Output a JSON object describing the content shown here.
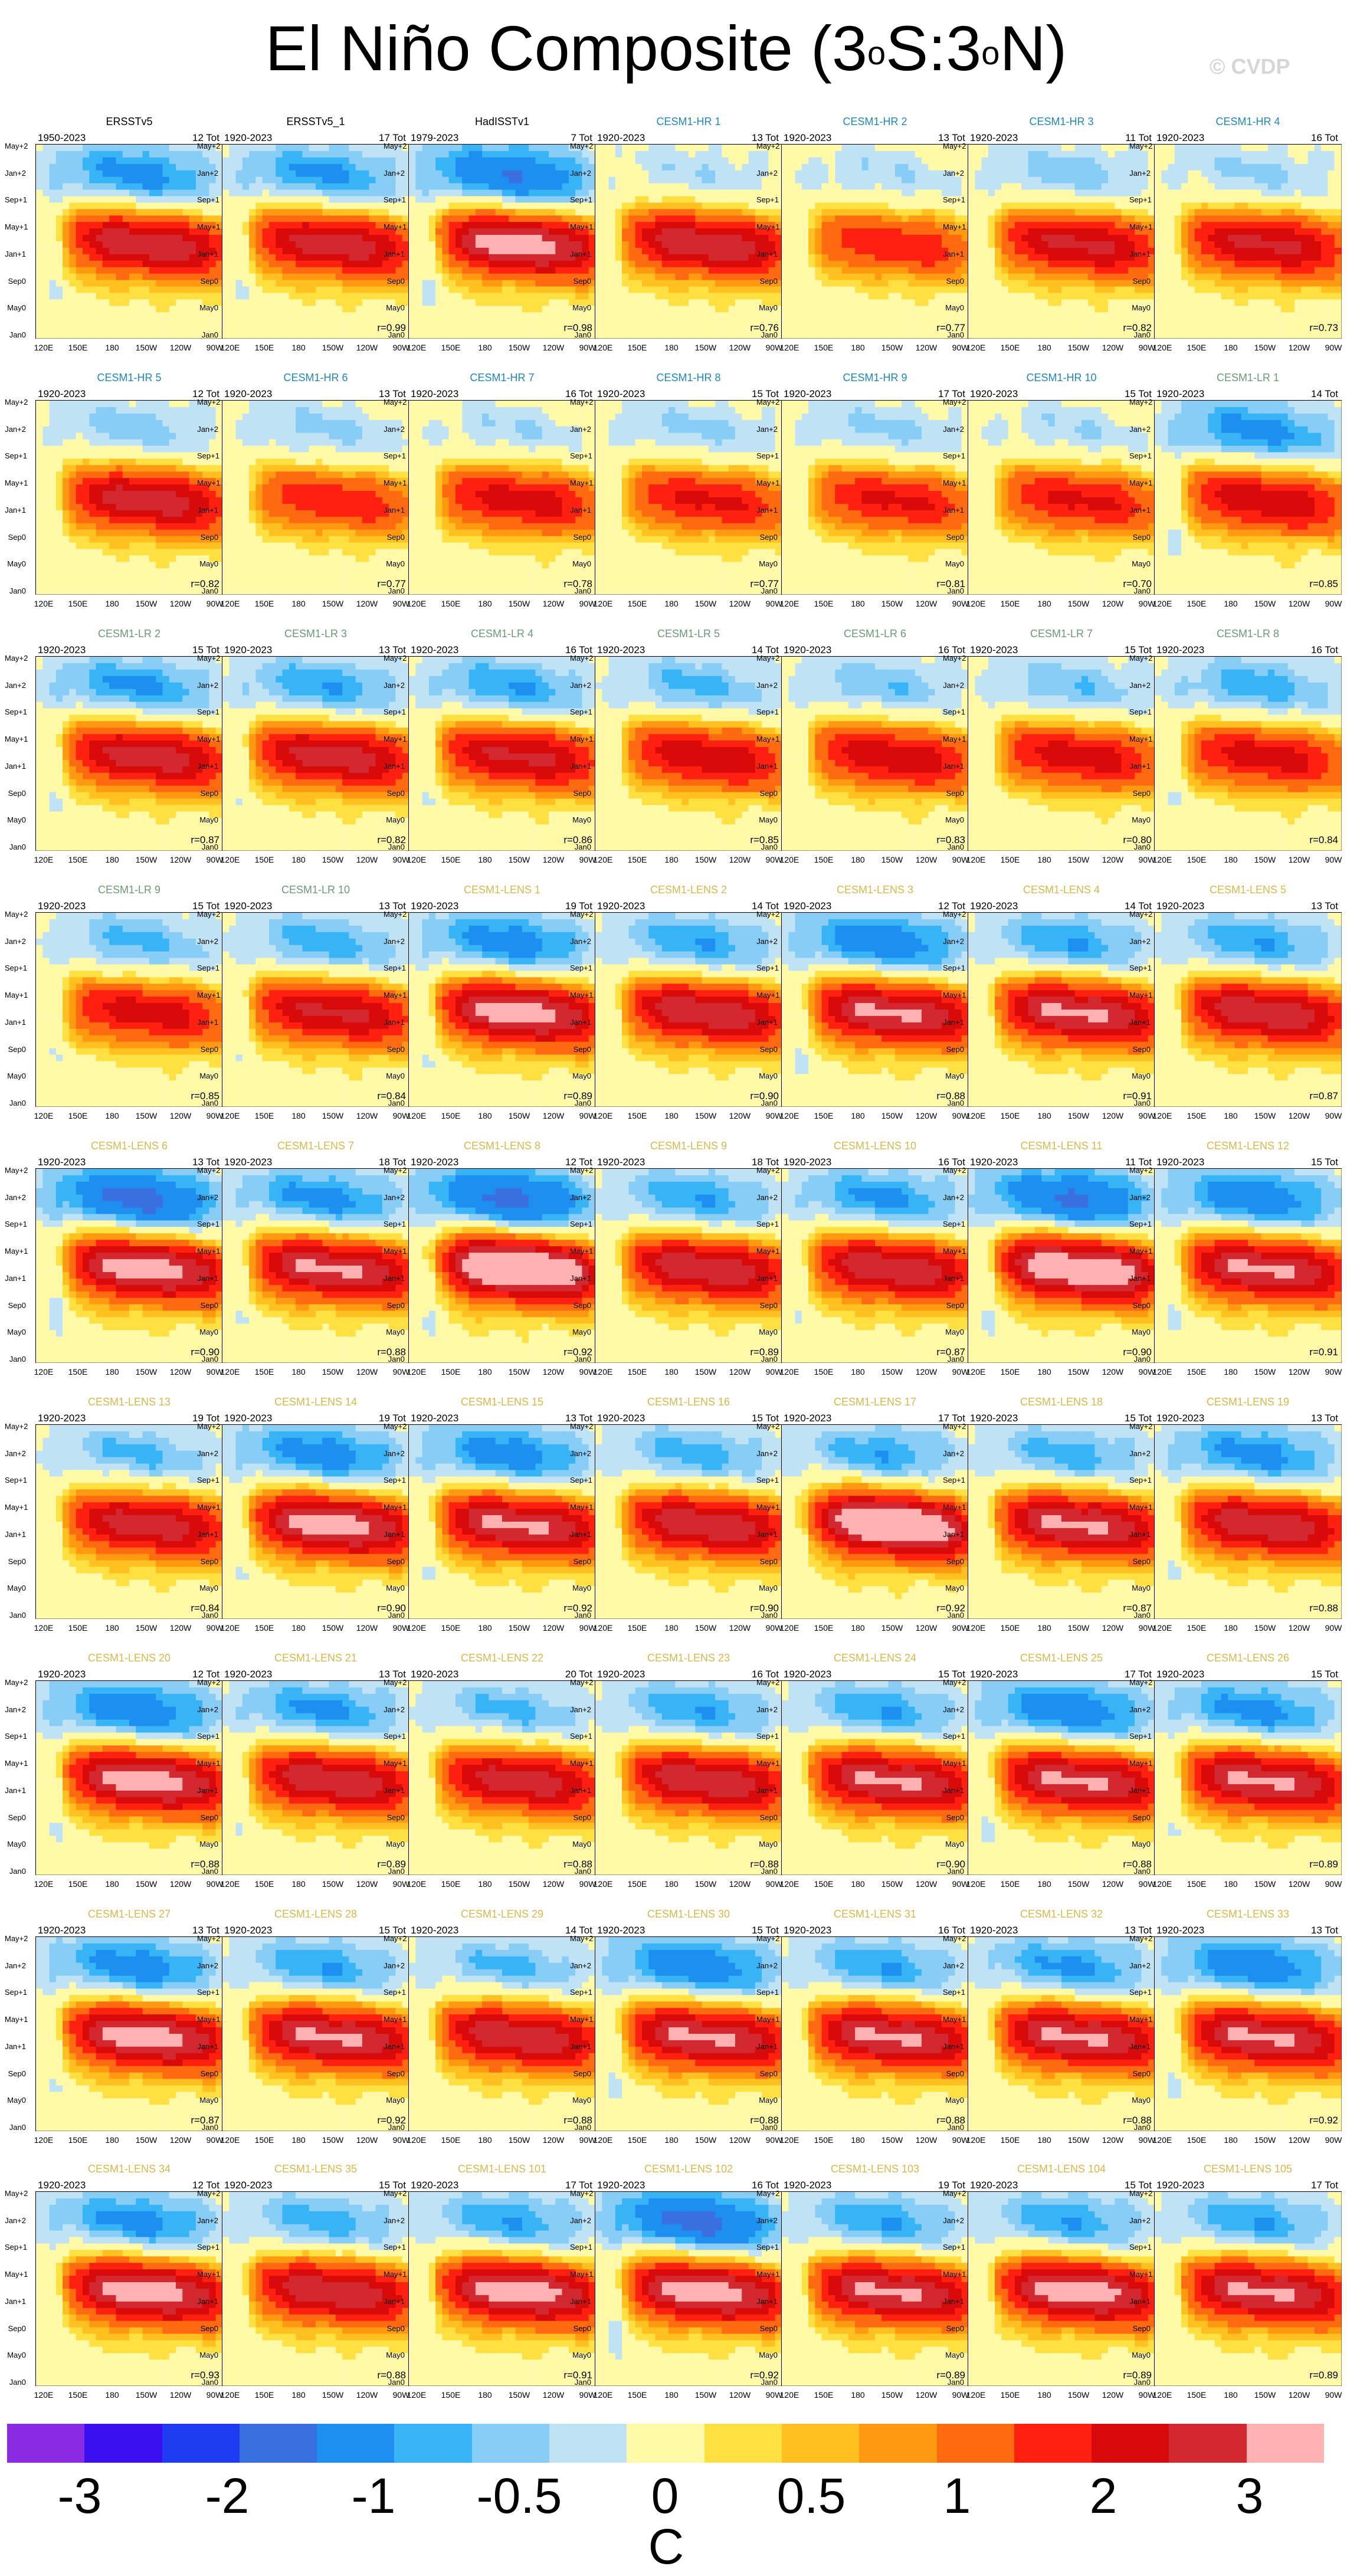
{
  "title": {
    "text": "El Niño Composite (3",
    "sup1": "o",
    "mid": "S:3",
    "sup2": "o",
    "end": "N)"
  },
  "watermark": "© CVDP",
  "colors": {
    "name_obs": "#000000",
    "name_hr": "#1e88c4",
    "name_lr": "#6b9a76",
    "name_lens": "#d9b84a"
  },
  "chart_data": {
    "type": "heatmap",
    "title": "El Niño Composite (3oS:3oN)",
    "xticks": [
      "120E",
      "150E",
      "180",
      "150W",
      "120W",
      "90W"
    ],
    "yticks": [
      "May+2",
      "Jan+2",
      "Sep+1",
      "May+1",
      "Jan+1",
      "Sep0",
      "May0",
      "Jan0"
    ],
    "colorbar": {
      "labels": [
        "-3",
        "-2",
        "-1",
        "-0.5",
        "0",
        "0.5",
        "1",
        "2",
        "3"
      ],
      "units": "C",
      "colors": [
        "#8a2be2",
        "#3a10f0",
        "#1e3cf0",
        "#3a6fe0",
        "#1e8ef0",
        "#36b4f5",
        "#87cdf5",
        "#bfe3f5",
        "#fff9a8",
        "#ffe040",
        "#ffc020",
        "#ff9a10",
        "#ff6a10",
        "#ff2010",
        "#d80a0a",
        "#d42830",
        "#ffb0b0"
      ]
    },
    "panels": [
      {
        "name": "ERSSTv5",
        "group": "obs",
        "years": "1950-2023",
        "tot": "12 Tot",
        "r": "",
        "amp": 0.85,
        "cold": 0.7
      },
      {
        "name": "ERSSTv5_1",
        "group": "obs",
        "years": "1920-2023",
        "tot": "17 Tot",
        "r": "r=0.99",
        "amp": 0.8,
        "cold": 0.65
      },
      {
        "name": "HadISSTv1",
        "group": "obs",
        "years": "1979-2023",
        "tot": "7 Tot",
        "r": "r=0.98",
        "amp": 0.95,
        "cold": 0.9
      },
      {
        "name": "CESM1-HR 1",
        "group": "hr",
        "years": "1920-2023",
        "tot": "13 Tot",
        "r": "r=0.76",
        "amp": 0.85,
        "cold": 0.3
      },
      {
        "name": "CESM1-HR 2",
        "group": "hr",
        "years": "1920-2023",
        "tot": "13 Tot",
        "r": "r=0.77",
        "amp": 0.55,
        "cold": 0.3
      },
      {
        "name": "CESM1-HR 3",
        "group": "hr",
        "years": "1920-2023",
        "tot": "11 Tot",
        "r": "r=0.82",
        "amp": 0.75,
        "cold": 0.4
      },
      {
        "name": "CESM1-HR 4",
        "group": "hr",
        "years": "1920-2023",
        "tot": "16 Tot",
        "r": "r=0.73",
        "amp": 0.75,
        "cold": 0.35
      },
      {
        "name": "CESM1-HR 5",
        "group": "hr",
        "years": "1920-2023",
        "tot": "12 Tot",
        "r": "r=0.82",
        "amp": 0.8,
        "cold": 0.4
      },
      {
        "name": "CESM1-HR 6",
        "group": "hr",
        "years": "1920-2023",
        "tot": "13 Tot",
        "r": "r=0.77",
        "amp": 0.55,
        "cold": 0.35
      },
      {
        "name": "CESM1-HR 7",
        "group": "hr",
        "years": "1920-2023",
        "tot": "16 Tot",
        "r": "r=0.78",
        "amp": 0.65,
        "cold": 0.3
      },
      {
        "name": "CESM1-HR 8",
        "group": "hr",
        "years": "1920-2023",
        "tot": "15 Tot",
        "r": "r=0.77",
        "amp": 0.6,
        "cold": 0.35
      },
      {
        "name": "CESM1-HR 9",
        "group": "hr",
        "years": "1920-2023",
        "tot": "17 Tot",
        "r": "r=0.81",
        "amp": 0.6,
        "cold": 0.35
      },
      {
        "name": "CESM1-HR 10",
        "group": "hr",
        "years": "1920-2023",
        "tot": "15 Tot",
        "r": "r=0.70",
        "amp": 0.6,
        "cold": 0.3
      },
      {
        "name": "CESM1-LR 1",
        "group": "lr",
        "years": "1920-2023",
        "tot": "14 Tot",
        "r": "r=0.85",
        "amp": 0.7,
        "cold": 0.7
      },
      {
        "name": "CESM1-LR 2",
        "group": "lr",
        "years": "1920-2023",
        "tot": "15 Tot",
        "r": "r=0.87",
        "amp": 0.8,
        "cold": 0.65
      },
      {
        "name": "CESM1-LR 3",
        "group": "lr",
        "years": "1920-2023",
        "tot": "13 Tot",
        "r": "r=0.82",
        "amp": 0.8,
        "cold": 0.6
      },
      {
        "name": "CESM1-LR 4",
        "group": "lr",
        "years": "1920-2023",
        "tot": "16 Tot",
        "r": "r=0.86",
        "amp": 0.75,
        "cold": 0.6
      },
      {
        "name": "CESM1-LR 5",
        "group": "lr",
        "years": "1920-2023",
        "tot": "14 Tot",
        "r": "r=0.85",
        "amp": 0.7,
        "cold": 0.5
      },
      {
        "name": "CESM1-LR 6",
        "group": "lr",
        "years": "1920-2023",
        "tot": "16 Tot",
        "r": "r=0.83",
        "amp": 0.7,
        "cold": 0.45
      },
      {
        "name": "CESM1-LR 7",
        "group": "lr",
        "years": "1920-2023",
        "tot": "15 Tot",
        "r": "r=0.80",
        "amp": 0.65,
        "cold": 0.45
      },
      {
        "name": "CESM1-LR 8",
        "group": "lr",
        "years": "1920-2023",
        "tot": "16 Tot",
        "r": "r=0.84",
        "amp": 0.65,
        "cold": 0.55
      },
      {
        "name": "CESM1-LR 9",
        "group": "lr",
        "years": "1920-2023",
        "tot": "15 Tot",
        "r": "r=0.85",
        "amp": 0.65,
        "cold": 0.5
      },
      {
        "name": "CESM1-LR 10",
        "group": "lr",
        "years": "1920-2023",
        "tot": "13 Tot",
        "r": "r=0.84",
        "amp": 0.75,
        "cold": 0.55
      },
      {
        "name": "CESM1-LENS 1",
        "group": "lens",
        "years": "1920-2023",
        "tot": "19 Tot",
        "r": "r=0.89",
        "amp": 0.95,
        "cold": 0.75
      },
      {
        "name": "CESM1-LENS 2",
        "group": "lens",
        "years": "1920-2023",
        "tot": "14 Tot",
        "r": "r=0.90",
        "amp": 0.85,
        "cold": 0.6
      },
      {
        "name": "CESM1-LENS 3",
        "group": "lens",
        "years": "1920-2023",
        "tot": "12 Tot",
        "r": "r=0.88",
        "amp": 0.9,
        "cold": 0.8
      },
      {
        "name": "CESM1-LENS 4",
        "group": "lens",
        "years": "1920-2023",
        "tot": "14 Tot",
        "r": "r=0.91",
        "amp": 0.9,
        "cold": 0.6
      },
      {
        "name": "CESM1-LENS 5",
        "group": "lens",
        "years": "1920-2023",
        "tot": "13 Tot",
        "r": "r=0.87",
        "amp": 0.85,
        "cold": 0.6
      },
      {
        "name": "CESM1-LENS 6",
        "group": "lens",
        "years": "1920-2023",
        "tot": "13 Tot",
        "r": "r=0.90",
        "amp": 0.95,
        "cold": 1.0
      },
      {
        "name": "CESM1-LENS 7",
        "group": "lens",
        "years": "1920-2023",
        "tot": "18 Tot",
        "r": "r=0.88",
        "amp": 0.9,
        "cold": 0.7
      },
      {
        "name": "CESM1-LENS 8",
        "group": "lens",
        "years": "1920-2023",
        "tot": "12 Tot",
        "r": "r=0.92",
        "amp": 1.15,
        "cold": 1.0
      },
      {
        "name": "CESM1-LENS 9",
        "group": "lens",
        "years": "1920-2023",
        "tot": "18 Tot",
        "r": "r=0.89",
        "amp": 0.85,
        "cold": 0.6
      },
      {
        "name": "CESM1-LENS 10",
        "group": "lens",
        "years": "1920-2023",
        "tot": "16 Tot",
        "r": "r=0.87",
        "amp": 0.85,
        "cold": 0.65
      },
      {
        "name": "CESM1-LENS 11",
        "group": "lens",
        "years": "1920-2023",
        "tot": "11 Tot",
        "r": "r=0.90",
        "amp": 1.05,
        "cold": 0.95
      },
      {
        "name": "CESM1-LENS 12",
        "group": "lens",
        "years": "1920-2023",
        "tot": "15 Tot",
        "r": "r=0.91",
        "amp": 0.9,
        "cold": 0.8
      },
      {
        "name": "CESM1-LENS 13",
        "group": "lens",
        "years": "1920-2023",
        "tot": "19 Tot",
        "r": "r=0.84",
        "amp": 0.8,
        "cold": 0.5
      },
      {
        "name": "CESM1-LENS 14",
        "group": "lens",
        "years": "1920-2023",
        "tot": "19 Tot",
        "r": "r=0.90",
        "amp": 0.95,
        "cold": 0.75
      },
      {
        "name": "CESM1-LENS 15",
        "group": "lens",
        "years": "1920-2023",
        "tot": "13 Tot",
        "r": "r=0.92",
        "amp": 0.9,
        "cold": 0.75
      },
      {
        "name": "CESM1-LENS 16",
        "group": "lens",
        "years": "1920-2023",
        "tot": "15 Tot",
        "r": "r=0.90",
        "amp": 0.85,
        "cold": 0.55
      },
      {
        "name": "CESM1-LENS 17",
        "group": "lens",
        "years": "1920-2023",
        "tot": "17 Tot",
        "r": "r=0.92",
        "amp": 1.1,
        "cold": 0.6
      },
      {
        "name": "CESM1-LENS 18",
        "group": "lens",
        "years": "1920-2023",
        "tot": "15 Tot",
        "r": "r=0.87",
        "amp": 0.9,
        "cold": 0.55
      },
      {
        "name": "CESM1-LENS 19",
        "group": "lens",
        "years": "1920-2023",
        "tot": "13 Tot",
        "r": "r=0.88",
        "amp": 0.85,
        "cold": 0.7
      },
      {
        "name": "CESM1-LENS 20",
        "group": "lens",
        "years": "1920-2023",
        "tot": "12 Tot",
        "r": "r=0.88",
        "amp": 0.95,
        "cold": 0.8
      },
      {
        "name": "CESM1-LENS 21",
        "group": "lens",
        "years": "1920-2023",
        "tot": "13 Tot",
        "r": "r=0.89",
        "amp": 0.85,
        "cold": 0.65
      },
      {
        "name": "CESM1-LENS 22",
        "group": "lens",
        "years": "1920-2023",
        "tot": "20 Tot",
        "r": "r=0.88",
        "amp": 0.8,
        "cold": 0.5
      },
      {
        "name": "CESM1-LENS 23",
        "group": "lens",
        "years": "1920-2023",
        "tot": "16 Tot",
        "r": "r=0.88",
        "amp": 0.85,
        "cold": 0.6
      },
      {
        "name": "CESM1-LENS 24",
        "group": "lens",
        "years": "1920-2023",
        "tot": "15 Tot",
        "r": "r=0.90",
        "amp": 0.9,
        "cold": 0.6
      },
      {
        "name": "CESM1-LENS 25",
        "group": "lens",
        "years": "1920-2023",
        "tot": "17 Tot",
        "r": "r=0.88",
        "amp": 0.9,
        "cold": 0.8
      },
      {
        "name": "CESM1-LENS 26",
        "group": "lens",
        "years": "1920-2023",
        "tot": "15 Tot",
        "r": "r=0.89",
        "amp": 0.9,
        "cold": 0.7
      },
      {
        "name": "CESM1-LENS 27",
        "group": "lens",
        "years": "1920-2023",
        "tot": "13 Tot",
        "r": "r=0.87",
        "amp": 0.95,
        "cold": 0.75
      },
      {
        "name": "CESM1-LENS 28",
        "group": "lens",
        "years": "1920-2023",
        "tot": "15 Tot",
        "r": "r=0.92",
        "amp": 0.9,
        "cold": 0.6
      },
      {
        "name": "CESM1-LENS 29",
        "group": "lens",
        "years": "1920-2023",
        "tot": "14 Tot",
        "r": "r=0.88",
        "amp": 0.85,
        "cold": 0.5
      },
      {
        "name": "CESM1-LENS 30",
        "group": "lens",
        "years": "1920-2023",
        "tot": "15 Tot",
        "r": "r=0.88",
        "amp": 0.9,
        "cold": 0.8
      },
      {
        "name": "CESM1-LENS 31",
        "group": "lens",
        "years": "1920-2023",
        "tot": "16 Tot",
        "r": "r=0.88",
        "amp": 0.9,
        "cold": 0.6
      },
      {
        "name": "CESM1-LENS 32",
        "group": "lens",
        "years": "1920-2023",
        "tot": "13 Tot",
        "r": "r=0.88",
        "amp": 0.9,
        "cold": 0.65
      },
      {
        "name": "CESM1-LENS 33",
        "group": "lens",
        "years": "1920-2023",
        "tot": "13 Tot",
        "r": "r=0.92",
        "amp": 0.9,
        "cold": 0.8
      },
      {
        "name": "CESM1-LENS 34",
        "group": "lens",
        "years": "1920-2023",
        "tot": "12 Tot",
        "r": "r=0.93",
        "amp": 0.95,
        "cold": 0.7
      },
      {
        "name": "CESM1-LENS 35",
        "group": "lens",
        "years": "1920-2023",
        "tot": "15 Tot",
        "r": "r=0.88",
        "amp": 0.85,
        "cold": 0.55
      },
      {
        "name": "CESM1-LENS 101",
        "group": "lens",
        "years": "1920-2023",
        "tot": "17 Tot",
        "r": "r=0.91",
        "amp": 0.95,
        "cold": 0.6
      },
      {
        "name": "CESM1-LENS 102",
        "group": "lens",
        "years": "1920-2023",
        "tot": "16 Tot",
        "r": "r=0.92",
        "amp": 0.95,
        "cold": 1.0
      },
      {
        "name": "CESM1-LENS 103",
        "group": "lens",
        "years": "1920-2023",
        "tot": "19 Tot",
        "r": "r=0.89",
        "amp": 0.9,
        "cold": 0.6
      },
      {
        "name": "CESM1-LENS 104",
        "group": "lens",
        "years": "1920-2023",
        "tot": "15 Tot",
        "r": "r=0.89",
        "amp": 0.95,
        "cold": 0.6
      },
      {
        "name": "CESM1-LENS 105",
        "group": "lens",
        "years": "1920-2023",
        "tot": "17 Tot",
        "r": "r=0.89",
        "amp": 0.9,
        "cold": 0.6
      }
    ]
  }
}
